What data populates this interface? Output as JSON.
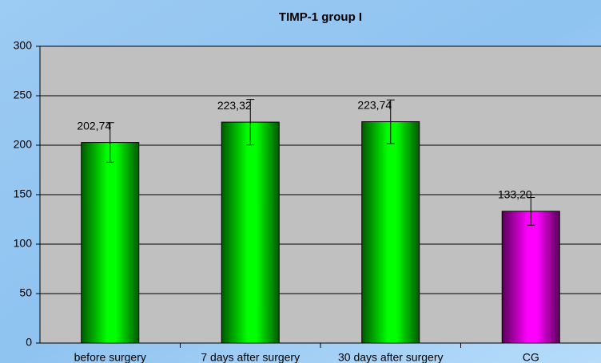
{
  "chart_data": {
    "type": "bar",
    "title": "TIMP-1 group I",
    "categories": [
      "before surgery",
      "7 days after surgery",
      "30 days after surgery",
      "CG"
    ],
    "values": [
      202.74,
      223.32,
      223.74,
      133.2
    ],
    "value_labels": [
      "202,74",
      "223,32",
      "223,74",
      "133,20"
    ],
    "errors": [
      20,
      23,
      22,
      14
    ],
    "colors": [
      "#00ff00",
      "#00ff00",
      "#00ff00",
      "#ff00ff"
    ],
    "ylim": [
      0,
      300
    ],
    "yticks": [
      0,
      50,
      100,
      150,
      200,
      250,
      300
    ],
    "grid": true
  }
}
